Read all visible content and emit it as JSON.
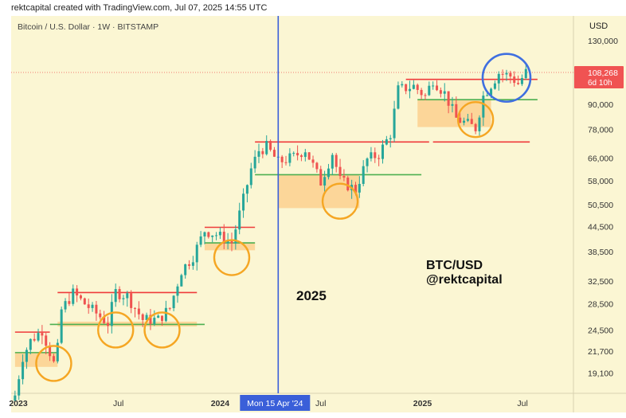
{
  "header": {
    "attribution": "rektcapital created with TradingView.com, Jul 07, 2025 14:55 UTC",
    "symbol": "Bitcoin / U.S. Dollar · 1W · BITSTAMP",
    "currency": "USD"
  },
  "price_tag": {
    "value": "108,268",
    "countdown": "6d 10h"
  },
  "crosshair_label": "Mon 15 Apr '24",
  "annotations": {
    "year": "2025",
    "brand_line1": "BTC/USD",
    "brand_line2": "@rektcapital"
  },
  "colors": {
    "background": "#fbf6d3",
    "up": "#26a69a",
    "down": "#ef5350",
    "resistance": "#ef3b3b",
    "support": "#4caf50",
    "zone": "#fbd08e",
    "circle_orange": "#f5a623",
    "circle_blue": "#3f6fe0",
    "crosshair": "#3a5fd9",
    "price_tag": "#f05352"
  },
  "chart_data": {
    "type": "candlestick",
    "title": "Bitcoin / U.S. Dollar · 1W · BITSTAMP",
    "ylabel": "USD",
    "y_scale": "log",
    "ylim": [
      17000,
      150000
    ],
    "y_ticks": [
      {
        "v": 130000,
        "label": "130,000"
      },
      {
        "v": 90000,
        "label": "90,000"
      },
      {
        "v": 78000,
        "label": "78,000"
      },
      {
        "v": 66000,
        "label": "66,000"
      },
      {
        "v": 58000,
        "label": "58,000"
      },
      {
        "v": 50500,
        "label": "50,500"
      },
      {
        "v": 44500,
        "label": "44,500"
      },
      {
        "v": 38500,
        "label": "38,500"
      },
      {
        "v": 32500,
        "label": "32,500"
      },
      {
        "v": 28500,
        "label": "28,500"
      },
      {
        "v": 24500,
        "label": "24,500"
      },
      {
        "v": 21700,
        "label": "21,700"
      },
      {
        "v": 19100,
        "label": "19,100"
      }
    ],
    "x_ticks": [
      {
        "date": "2023-01-01",
        "label": "2023",
        "bold": true
      },
      {
        "date": "2023-07-01",
        "label": "Jul",
        "bold": false
      },
      {
        "date": "2024-01-01",
        "label": "2024",
        "bold": true
      },
      {
        "date": "2024-07-01",
        "label": "Jul",
        "bold": false
      },
      {
        "date": "2025-01-01",
        "label": "2025",
        "bold": true
      },
      {
        "date": "2025-07-01",
        "label": "Jul",
        "bold": false
      }
    ],
    "xlim": [
      "2022-12-19",
      "2025-10-01"
    ],
    "last_price": 108268,
    "crosshair_date": "2024-04-15",
    "anchors": [
      [
        "2022-12-26",
        16800
      ],
      [
        "2023-01-09",
        21000
      ],
      [
        "2023-01-23",
        23000
      ],
      [
        "2023-02-13",
        24500
      ],
      [
        "2023-03-06",
        20200
      ],
      [
        "2023-03-13",
        22000
      ],
      [
        "2023-03-20",
        27500
      ],
      [
        "2023-04-10",
        30300
      ],
      [
        "2023-05-01",
        28500
      ],
      [
        "2023-06-12",
        25500
      ],
      [
        "2023-06-26",
        30500
      ],
      [
        "2023-07-17",
        29800
      ],
      [
        "2023-08-14",
        26000
      ],
      [
        "2023-09-11",
        26000
      ],
      [
        "2023-10-02",
        27800
      ],
      [
        "2023-10-23",
        34500
      ],
      [
        "2023-11-13",
        37500
      ],
      [
        "2023-12-04",
        43500
      ],
      [
        "2023-12-25",
        42500
      ],
      [
        "2024-01-22",
        40500
      ],
      [
        "2024-02-12",
        52000
      ],
      [
        "2024-02-26",
        62000
      ],
      [
        "2024-03-11",
        69000
      ],
      [
        "2024-03-25",
        70500
      ],
      [
        "2024-04-15",
        64500
      ],
      [
        "2024-05-13",
        66500
      ],
      [
        "2024-06-03",
        69500
      ],
      [
        "2024-07-01",
        57500
      ],
      [
        "2024-07-22",
        68000
      ],
      [
        "2024-08-05",
        58000
      ],
      [
        "2024-09-02",
        55000
      ],
      [
        "2024-09-23",
        65500
      ],
      [
        "2024-10-14",
        67500
      ],
      [
        "2024-11-04",
        76000
      ],
      [
        "2024-11-18",
        98000
      ],
      [
        "2024-12-16",
        100000
      ],
      [
        "2025-01-06",
        94500
      ],
      [
        "2025-01-20",
        104000
      ],
      [
        "2025-02-10",
        96000
      ],
      [
        "2025-03-03",
        83000
      ],
      [
        "2025-04-07",
        78500
      ],
      [
        "2025-04-21",
        94500
      ],
      [
        "2025-05-19",
        108000
      ],
      [
        "2025-06-09",
        106000
      ],
      [
        "2025-06-23",
        101500
      ],
      [
        "2025-07-07",
        108268
      ]
    ],
    "resistance_lines": [
      {
        "y": 24200,
        "from": "2022-12-26",
        "to": "2023-02-27"
      },
      {
        "y": 30400,
        "from": "2023-03-13",
        "to": "2023-11-20"
      },
      {
        "y": 44300,
        "from": "2023-12-04",
        "to": "2024-03-04"
      },
      {
        "y": 72500,
        "from": "2024-03-04",
        "to": "2025-01-13"
      },
      {
        "y": 104000,
        "from": "2024-12-02",
        "to": "2025-07-28"
      },
      {
        "y": 72500,
        "from": "2025-01-20",
        "to": "2025-07-14"
      }
    ],
    "support_lines": [
      {
        "y": 21500,
        "from": "2022-12-26",
        "to": "2023-03-13"
      },
      {
        "y": 25300,
        "from": "2023-02-27",
        "to": "2023-12-04"
      },
      {
        "y": 40500,
        "from": "2023-12-04",
        "to": "2024-03-04"
      },
      {
        "y": 60000,
        "from": "2024-03-04",
        "to": "2024-12-30"
      },
      {
        "y": 92500,
        "from": "2024-12-23",
        "to": "2025-07-28"
      }
    ],
    "zones": [
      {
        "y1": 19800,
        "y2": 21500,
        "from": "2022-12-26",
        "to": "2023-03-13"
      },
      {
        "y1": 25000,
        "y2": 25700,
        "from": "2023-03-13",
        "to": "2023-11-20"
      },
      {
        "y1": 38800,
        "y2": 40500,
        "from": "2023-12-04",
        "to": "2024-03-04"
      },
      {
        "y1": 49500,
        "y2": 60000,
        "from": "2024-04-15",
        "to": "2024-09-09"
      },
      {
        "y1": 79000,
        "y2": 92500,
        "from": "2024-12-23",
        "to": "2025-05-05"
      }
    ],
    "circles_orange": [
      {
        "date": "2023-03-06",
        "y": 20200
      },
      {
        "date": "2023-06-26",
        "y": 24500
      },
      {
        "date": "2023-09-18",
        "y": 24500
      },
      {
        "date": "2024-01-22",
        "y": 37200
      },
      {
        "date": "2024-08-05",
        "y": 51500
      },
      {
        "date": "2025-04-07",
        "y": 82500
      }
    ],
    "circles_blue": [
      {
        "date": "2025-06-02",
        "y": 105000
      }
    ]
  }
}
